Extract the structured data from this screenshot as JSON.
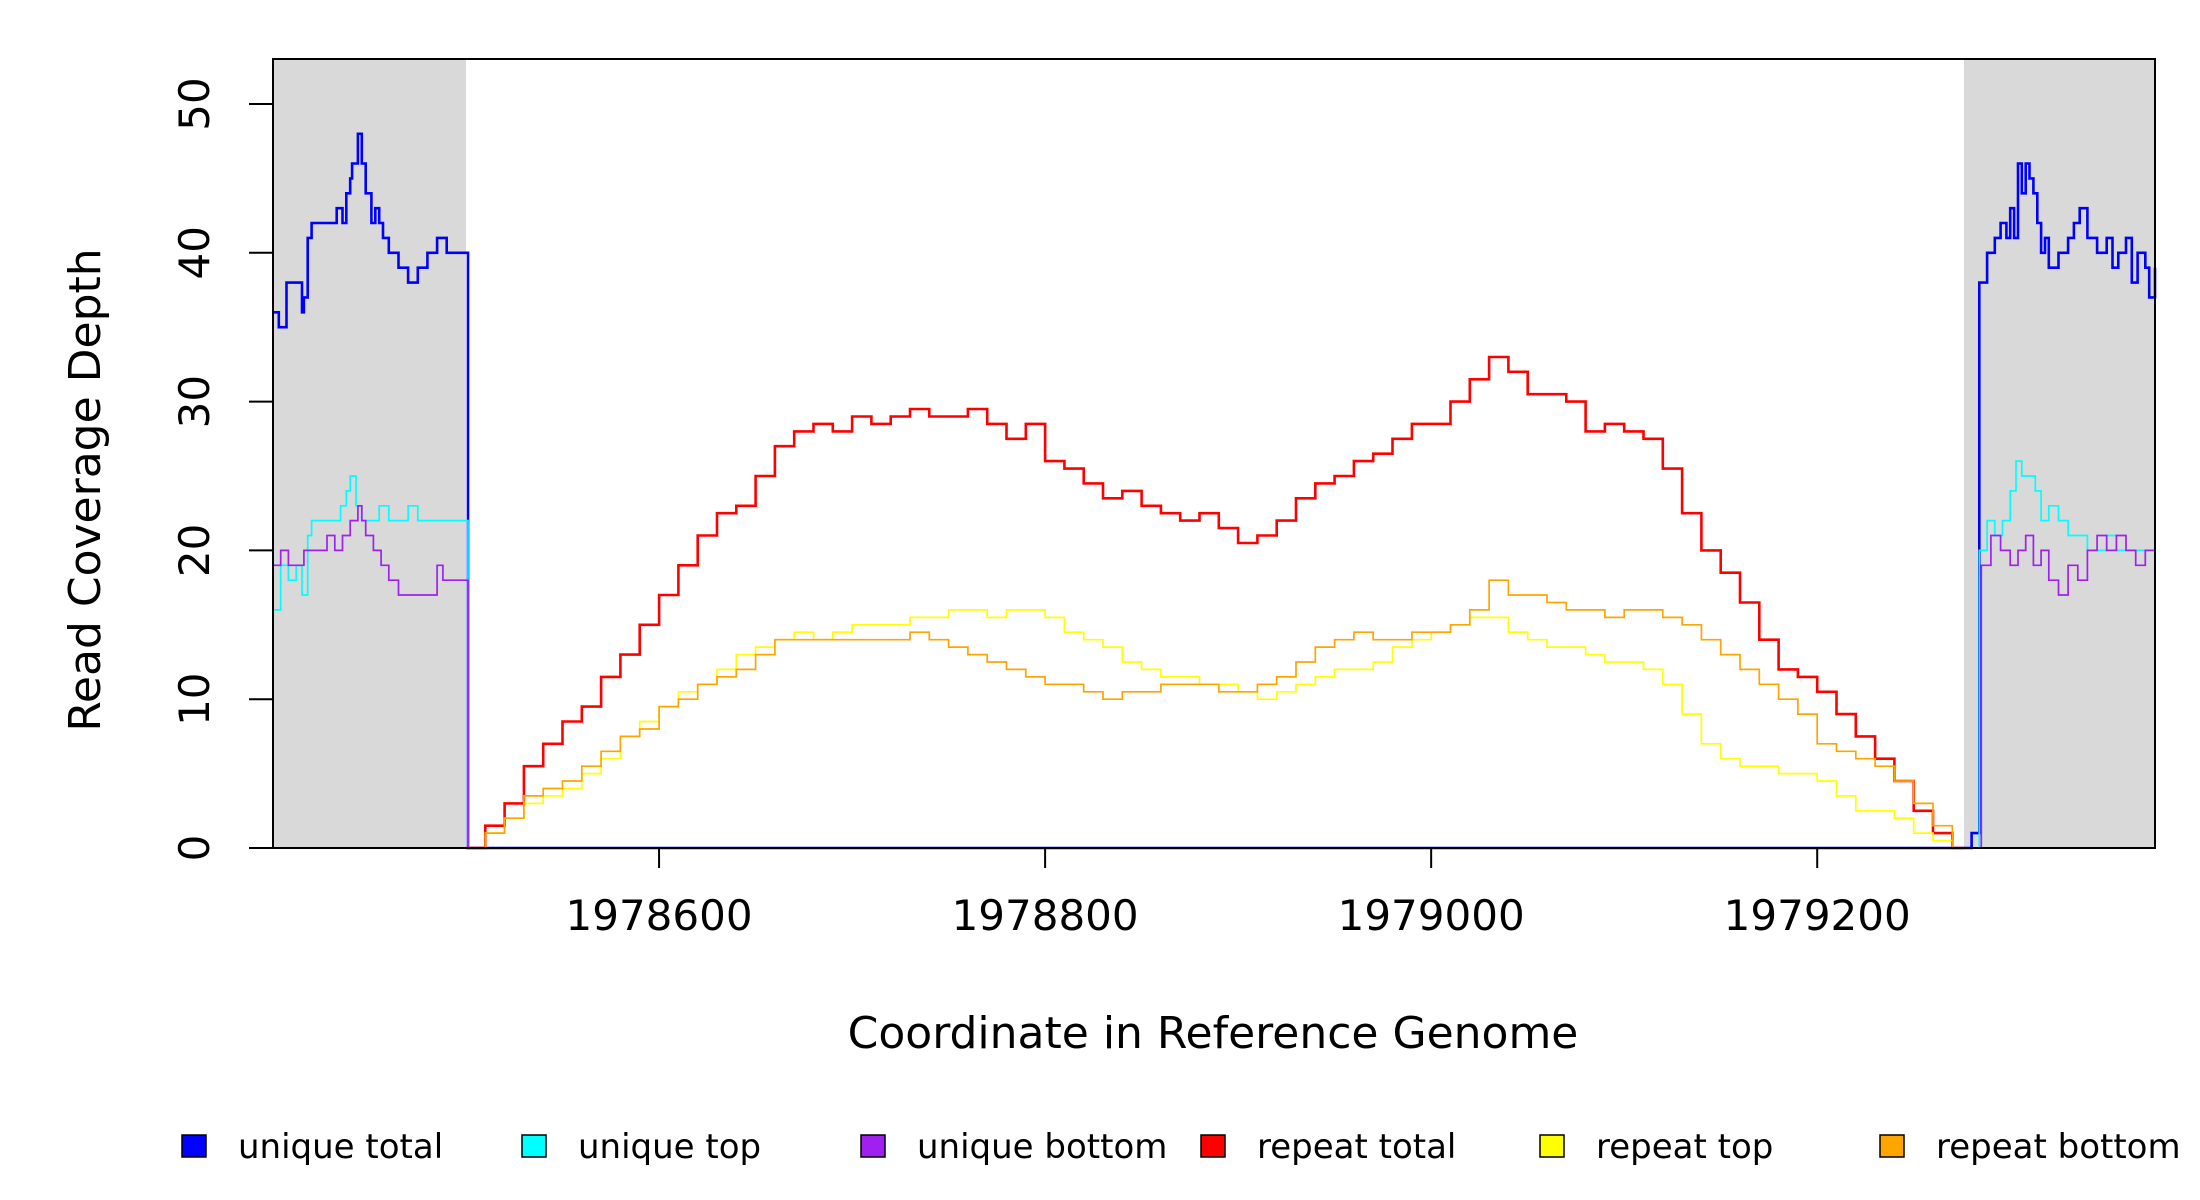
{
  "chart_data": {
    "type": "line",
    "title": "",
    "xlabel": "Coordinate in Reference Genome",
    "ylabel": "Read Coverage Depth",
    "xlim": [
      1978400,
      1979375
    ],
    "ylim": [
      0,
      50
    ],
    "xticks": [
      1978600,
      1978800,
      1979000,
      1979200
    ],
    "yticks": [
      0,
      10,
      20,
      30,
      40,
      50
    ],
    "shaded_regions": [
      {
        "x": [
          1978400,
          1978500
        ],
        "color": "#d9d9d9"
      },
      {
        "x": [
          1979276,
          1979375
        ],
        "color": "#d9d9d9"
      }
    ],
    "legend_position": "bottom",
    "series": [
      {
        "name": "unique total",
        "color": "#0000ff",
        "width": 2.6,
        "x": [
          1978400,
          1978403,
          1978407,
          1978412,
          1978415,
          1978416,
          1978418,
          1978420,
          1978425,
          1978430,
          1978433,
          1978436,
          1978438,
          1978440,
          1978441,
          1978442,
          1978444,
          1978446,
          1978448,
          1978451,
          1978453,
          1978455,
          1978457,
          1978460,
          1978465,
          1978470,
          1978475,
          1978480,
          1978485,
          1978490,
          1978492,
          1978495,
          1978498,
          1978500,
          1978501,
          1979276,
          1979280,
          1979283,
          1979284,
          1979285,
          1979288,
          1979292,
          1979295,
          1979298,
          1979300,
          1979302,
          1979304,
          1979306,
          1979308,
          1979310,
          1979312,
          1979314,
          1979316,
          1979318,
          1979320,
          1979325,
          1979330,
          1979333,
          1979336,
          1979340,
          1979345,
          1979350,
          1979353,
          1979356,
          1979360,
          1979363,
          1979366,
          1979370,
          1979372,
          1979375
        ],
        "y": [
          36,
          35,
          38,
          38,
          36,
          37,
          41,
          42,
          42,
          42,
          43,
          42,
          44,
          45,
          46,
          46,
          48,
          46,
          44,
          42,
          43,
          42,
          41,
          40,
          39,
          38,
          39,
          40,
          41,
          40,
          40,
          40,
          40,
          40,
          0,
          0,
          1,
          1,
          38,
          38,
          40,
          41,
          42,
          41,
          43,
          41,
          46,
          44,
          46,
          45,
          44,
          42,
          40,
          41,
          39,
          40,
          41,
          42,
          43,
          41,
          40,
          41,
          39,
          40,
          41,
          38,
          40,
          39,
          37,
          39
        ]
      },
      {
        "name": "unique top",
        "color": "#00ffff",
        "width": 1.7,
        "x": [
          1978400,
          1978404,
          1978408,
          1978412,
          1978415,
          1978418,
          1978420,
          1978425,
          1978430,
          1978435,
          1978438,
          1978440,
          1978443,
          1978446,
          1978450,
          1978455,
          1978460,
          1978465,
          1978470,
          1978475,
          1978480,
          1978485,
          1978490,
          1978495,
          1978498,
          1978500,
          1978501,
          1979276,
          1979282,
          1979284,
          1979285,
          1979288,
          1979292,
          1979296,
          1979300,
          1979303,
          1979306,
          1979310,
          1979313,
          1979316,
          1979320,
          1979325,
          1979330,
          1979335,
          1979340,
          1979345,
          1979350,
          1979355,
          1979360,
          1979365,
          1979370,
          1979375
        ],
        "y": [
          16,
          19,
          18,
          19,
          17,
          21,
          22,
          22,
          22,
          23,
          24,
          25,
          23,
          22,
          22,
          23,
          22,
          22,
          23,
          22,
          22,
          22,
          22,
          22,
          22,
          22,
          0,
          0,
          0,
          20,
          20,
          22,
          21,
          22,
          24,
          26,
          25,
          25,
          24,
          22,
          23,
          22,
          21,
          21,
          20,
          20,
          21,
          20,
          20,
          20,
          20,
          20
        ]
      },
      {
        "name": "unique bottom",
        "color": "#a020f0",
        "width": 1.7,
        "x": [
          1978400,
          1978404,
          1978408,
          1978412,
          1978416,
          1978420,
          1978424,
          1978428,
          1978432,
          1978436,
          1978440,
          1978444,
          1978446,
          1978448,
          1978452,
          1978456,
          1978460,
          1978465,
          1978470,
          1978475,
          1978480,
          1978485,
          1978488,
          1978490,
          1978495,
          1978500,
          1978501,
          1979276,
          1979284,
          1979285,
          1979290,
          1979295,
          1979300,
          1979304,
          1979308,
          1979312,
          1979316,
          1979320,
          1979325,
          1979330,
          1979335,
          1979340,
          1979345,
          1979350,
          1979355,
          1979360,
          1979365,
          1979370,
          1979375
        ],
        "y": [
          19,
          20,
          19,
          19,
          20,
          20,
          20,
          21,
          20,
          21,
          22,
          23,
          22,
          21,
          20,
          19,
          18,
          17,
          17,
          17,
          17,
          19,
          18,
          18,
          18,
          18,
          0,
          0,
          0,
          19,
          21,
          20,
          19,
          20,
          21,
          19,
          20,
          18,
          17,
          19,
          18,
          20,
          21,
          20,
          21,
          20,
          19,
          20,
          19
        ]
      },
      {
        "name": "repeat total",
        "color": "#ff0000",
        "width": 2.6,
        "x": [
          1978500,
          1978510,
          1978520,
          1978530,
          1978540,
          1978550,
          1978560,
          1978570,
          1978580,
          1978590,
          1978600,
          1978610,
          1978620,
          1978630,
          1978640,
          1978650,
          1978660,
          1978670,
          1978680,
          1978690,
          1978700,
          1978710,
          1978720,
          1978730,
          1978740,
          1978750,
          1978760,
          1978770,
          1978780,
          1978790,
          1978800,
          1978810,
          1978820,
          1978830,
          1978840,
          1978850,
          1978860,
          1978870,
          1978880,
          1978890,
          1978900,
          1978910,
          1978920,
          1978930,
          1978940,
          1978950,
          1978960,
          1978970,
          1978980,
          1978990,
          1979000,
          1979010,
          1979020,
          1979030,
          1979040,
          1979050,
          1979060,
          1979070,
          1979080,
          1979090,
          1979100,
          1979110,
          1979120,
          1979130,
          1979140,
          1979150,
          1979160,
          1979170,
          1979180,
          1979190,
          1979200,
          1979210,
          1979220,
          1979230,
          1979240,
          1979250,
          1979260,
          1979270,
          1979276
        ],
        "y": [
          0,
          1.5,
          3,
          5.5,
          7,
          8.5,
          9.5,
          11.5,
          13,
          15,
          17,
          19,
          21,
          22.5,
          23,
          25,
          27,
          28,
          28.5,
          28,
          29,
          28.5,
          29,
          29.5,
          29,
          29,
          29.5,
          28.5,
          27.5,
          28.5,
          26,
          25.5,
          24.5,
          23.5,
          24,
          23,
          22.5,
          22,
          22.5,
          21.5,
          20.5,
          21,
          22,
          23.5,
          24.5,
          25,
          26,
          26.5,
          27.5,
          28.5,
          28.5,
          30,
          31.5,
          33,
          32,
          30.5,
          30.5,
          30,
          28,
          28.5,
          28,
          27.5,
          25.5,
          22.5,
          20,
          18.5,
          16.5,
          14,
          12,
          11.5,
          10.5,
          9,
          7.5,
          6,
          4.5,
          2.5,
          1,
          0,
          0
        ]
      },
      {
        "name": "repeat top",
        "color": "#ffff00",
        "width": 1.7,
        "x": [
          1978500,
          1978510,
          1978520,
          1978530,
          1978540,
          1978550,
          1978560,
          1978570,
          1978580,
          1978590,
          1978600,
          1978610,
          1978620,
          1978630,
          1978640,
          1978650,
          1978660,
          1978670,
          1978680,
          1978690,
          1978700,
          1978710,
          1978720,
          1978730,
          1978740,
          1978750,
          1978760,
          1978770,
          1978780,
          1978790,
          1978800,
          1978810,
          1978820,
          1978830,
          1978840,
          1978850,
          1978860,
          1978870,
          1978880,
          1978890,
          1978900,
          1978910,
          1978920,
          1978930,
          1978940,
          1978950,
          1978960,
          1978970,
          1978980,
          1978990,
          1979000,
          1979010,
          1979020,
          1979030,
          1979040,
          1979050,
          1979060,
          1979070,
          1979080,
          1979090,
          1979100,
          1979110,
          1979120,
          1979130,
          1979140,
          1979150,
          1979160,
          1979170,
          1979180,
          1979190,
          1979200,
          1979210,
          1979220,
          1979230,
          1979240,
          1979250,
          1979260,
          1979270,
          1979276
        ],
        "y": [
          0,
          1,
          2,
          3,
          3.5,
          4,
          5,
          6,
          7.5,
          8.5,
          9.5,
          10.5,
          11,
          12,
          13,
          13.5,
          14,
          14.5,
          14,
          14.5,
          15,
          15,
          15,
          15.5,
          15.5,
          16,
          16,
          15.5,
          16,
          16,
          15.5,
          14.5,
          14,
          13.5,
          12.5,
          12,
          11.5,
          11.5,
          11,
          11,
          10.5,
          10,
          10.5,
          11,
          11.5,
          12,
          12,
          12.5,
          13.5,
          14,
          14.5,
          15,
          15.5,
          15.5,
          14.5,
          14,
          13.5,
          13.5,
          13,
          12.5,
          12.5,
          12,
          11,
          9,
          7,
          6,
          5.5,
          5.5,
          5,
          5,
          4.5,
          3.5,
          2.5,
          2.5,
          2,
          1,
          0.5,
          0,
          0
        ]
      },
      {
        "name": "repeat bottom",
        "color": "#ffa500",
        "width": 1.7,
        "x": [
          1978500,
          1978510,
          1978520,
          1978530,
          1978540,
          1978550,
          1978560,
          1978570,
          1978580,
          1978590,
          1978600,
          1978610,
          1978620,
          1978630,
          1978640,
          1978650,
          1978660,
          1978670,
          1978680,
          1978690,
          1978700,
          1978710,
          1978720,
          1978730,
          1978740,
          1978750,
          1978760,
          1978770,
          1978780,
          1978790,
          1978800,
          1978810,
          1978820,
          1978830,
          1978840,
          1978850,
          1978860,
          1978870,
          1978880,
          1978890,
          1978900,
          1978910,
          1978920,
          1978930,
          1978940,
          1978950,
          1978960,
          1978970,
          1978980,
          1978990,
          1979000,
          1979010,
          1979020,
          1979030,
          1979040,
          1979050,
          1979060,
          1979070,
          1979080,
          1979090,
          1979100,
          1979110,
          1979120,
          1979130,
          1979140,
          1979150,
          1979160,
          1979170,
          1979180,
          1979190,
          1979200,
          1979210,
          1979220,
          1979230,
          1979240,
          1979250,
          1979260,
          1979270,
          1979276
        ],
        "y": [
          0,
          1,
          2,
          3.5,
          4,
          4.5,
          5.5,
          6.5,
          7.5,
          8,
          9.5,
          10,
          11,
          11.5,
          12,
          13,
          14,
          14,
          14,
          14,
          14,
          14,
          14,
          14.5,
          14,
          13.5,
          13,
          12.5,
          12,
          11.5,
          11,
          11,
          10.5,
          10,
          10.5,
          10.5,
          11,
          11,
          11,
          10.5,
          10.5,
          11,
          11.5,
          12.5,
          13.5,
          14,
          14.5,
          14,
          14,
          14.5,
          14.5,
          15,
          16,
          18,
          17,
          17,
          16.5,
          16,
          16,
          15.5,
          16,
          16,
          15.5,
          15,
          14,
          13,
          12,
          11,
          10,
          9,
          7,
          6.5,
          6,
          5.5,
          4.5,
          3,
          1.5,
          0,
          0
        ]
      }
    ]
  }
}
